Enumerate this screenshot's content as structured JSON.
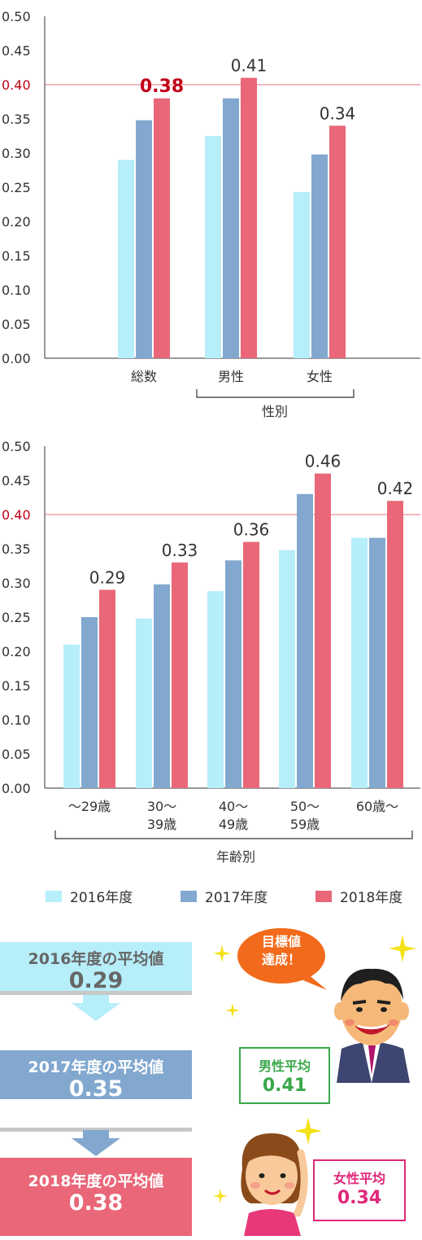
{
  "chart_data": [
    {
      "type": "bar",
      "categories": [
        "総数",
        "男性",
        "女性"
      ],
      "group_label": "性別",
      "group_label_categories": [
        "男性",
        "女性"
      ],
      "series": [
        {
          "name": "2016年度",
          "values": [
            0.29,
            0.325,
            0.243
          ]
        },
        {
          "name": "2017年度",
          "values": [
            0.348,
            0.38,
            0.298
          ]
        },
        {
          "name": "2018年度",
          "values": [
            0.38,
            0.41,
            0.34
          ]
        }
      ],
      "value_labels": [
        "0.38",
        "0.41",
        "0.34"
      ],
      "ylim": [
        0,
        0.5
      ],
      "yticks": [
        "0.00",
        "0.05",
        "0.10",
        "0.15",
        "0.20",
        "0.25",
        "0.30",
        "0.35",
        "0.40",
        "0.45",
        "0.50"
      ],
      "target_line": 0.4,
      "grid": false
    },
    {
      "type": "bar",
      "categories": [
        "〜29歳",
        "30〜\n39歳",
        "40〜\n49歳",
        "50〜\n59歳",
        "60歳〜"
      ],
      "group_label": "年齢別",
      "series": [
        {
          "name": "2016年度",
          "values": [
            0.21,
            0.248,
            0.288,
            0.348,
            0.366
          ]
        },
        {
          "name": "2017年度",
          "values": [
            0.25,
            0.298,
            0.333,
            0.43,
            0.366
          ]
        },
        {
          "name": "2018年度",
          "values": [
            0.29,
            0.33,
            0.36,
            0.46,
            0.42
          ]
        }
      ],
      "value_labels": [
        "0.29",
        "0.33",
        "0.36",
        "0.46",
        "0.42"
      ],
      "ylim": [
        0,
        0.5
      ],
      "yticks": [
        "0.00",
        "0.05",
        "0.10",
        "0.15",
        "0.20",
        "0.25",
        "0.30",
        "0.35",
        "0.40",
        "0.45",
        "0.50"
      ],
      "target_line": 0.4,
      "grid": false
    }
  ],
  "legend": [
    {
      "label": "2016年度",
      "color": "#b6eefa"
    },
    {
      "label": "2017年度",
      "color": "#82a8cf"
    },
    {
      "label": "2018年度",
      "color": "#e96778"
    }
  ],
  "colors": {
    "accent_red": "#c00018",
    "target_line": "#f0a0a8",
    "axis": "#333333"
  },
  "averages": [
    {
      "label": "2016年度の平均値",
      "value": "0.29",
      "bg": "#b6eefa",
      "text_color": "#666666"
    },
    {
      "label": "2017年度の平均値",
      "value": "0.35",
      "bg": "#82a8cf",
      "text_color": "#ffffff"
    },
    {
      "label": "2018年度の平均値",
      "value": "0.38",
      "bg": "#e96778",
      "text_color": "#ffffff"
    }
  ],
  "bubble": {
    "line1": "目標値",
    "line2": "達成！"
  },
  "male_badge": {
    "label": "男性平均",
    "value": "0.41",
    "color": "#3aa84a"
  },
  "female_badge": {
    "label": "女性平均",
    "value": "0.34",
    "color": "#e0287a"
  }
}
